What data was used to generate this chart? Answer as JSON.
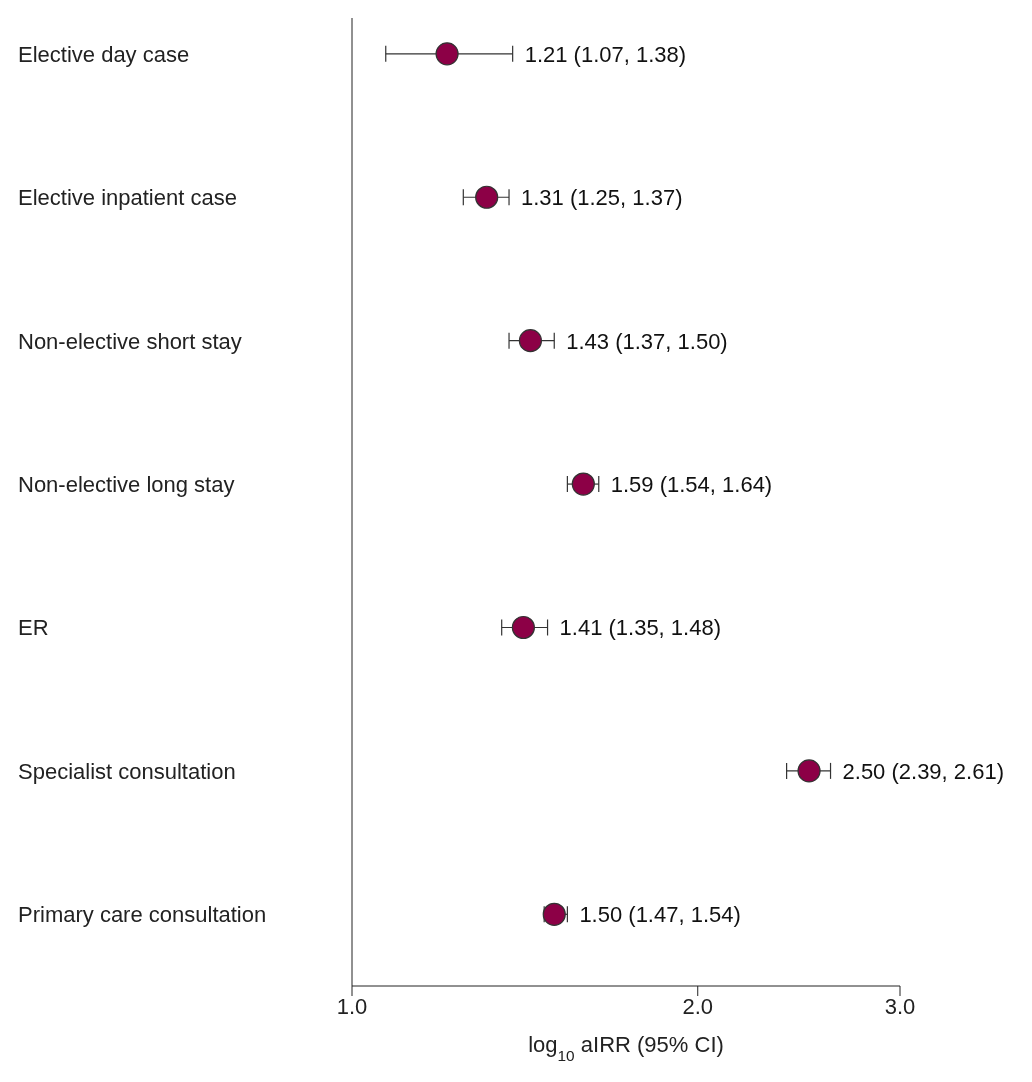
{
  "chart_data": {
    "type": "scatter",
    "orientation": "horizontal",
    "categories": [
      "Elective day case",
      "Elective inpatient case",
      "Non-elective short stay",
      "Non-elective long stay",
      "ER",
      "Specialist consultation",
      "Primary care consultation"
    ],
    "values": [
      1.21,
      1.31,
      1.43,
      1.59,
      1.41,
      2.5,
      1.5
    ],
    "errors": [
      [
        1.07,
        1.38
      ],
      [
        1.25,
        1.37
      ],
      [
        1.37,
        1.5
      ],
      [
        1.54,
        1.64
      ],
      [
        1.35,
        1.48
      ],
      [
        2.39,
        2.61
      ],
      [
        1.47,
        1.54
      ]
    ],
    "value_labels": [
      "1.21 (1.07, 1.38)",
      "1.31 (1.25, 1.37)",
      "1.43 (1.37, 1.50)",
      "1.59 (1.54, 1.64)",
      "1.41 (1.35, 1.48)",
      "2.50 (2.39, 2.61)",
      "1.50 (1.47, 1.54)"
    ],
    "color": "#8c0046",
    "marker": "circle",
    "log": "x",
    "xlim": [
      1,
      3
    ],
    "xticks": [
      {
        "value": 1,
        "label": "1.0"
      },
      {
        "value": 2,
        "label": "2.0"
      },
      {
        "value": 3,
        "label": "3.0"
      }
    ],
    "xlabel": "log$_{10}$ aIRR (95% CI)",
    "grid": false,
    "legend": false
  }
}
